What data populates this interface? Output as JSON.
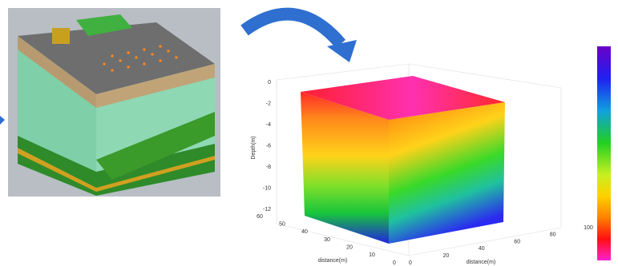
{
  "figure": {
    "z_axis": {
      "label": "Depth(m)",
      "ticks": [
        "0",
        "-2",
        "-4",
        "-6",
        "-8",
        "-10",
        "-12"
      ]
    },
    "y_axis": {
      "label": "distance(m)",
      "ticks": [
        "60",
        "50",
        "40",
        "30",
        "20",
        "10",
        "0"
      ]
    },
    "x_axis": {
      "label": "distance(m)",
      "ticks": [
        "0",
        "20",
        "40",
        "60",
        "80",
        "100"
      ]
    }
  }
}
